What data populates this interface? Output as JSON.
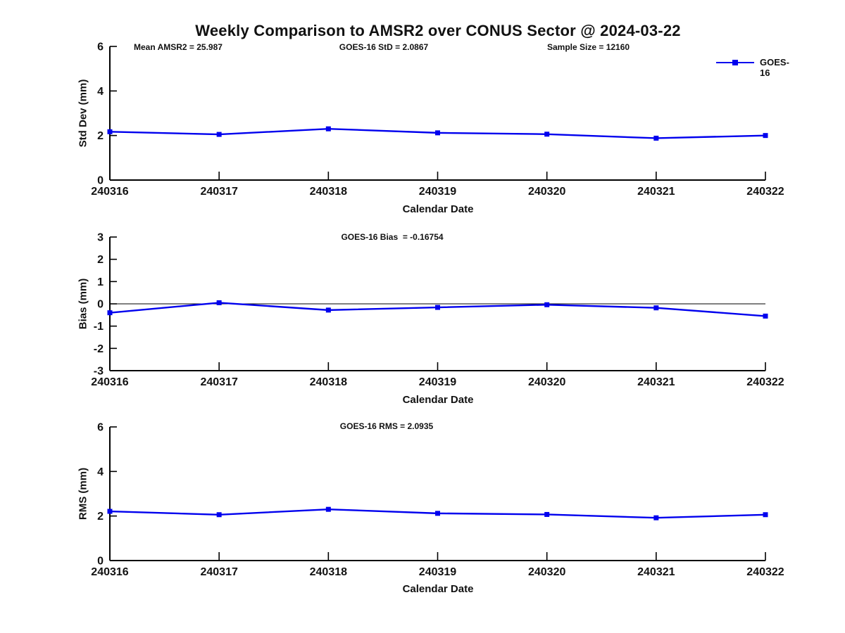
{
  "page": {
    "title": "Weekly Comparison to AMSR2 over CONUS Sector @ 2024-03-22"
  },
  "annotations": {
    "mean_amsr2": "Mean AMSR2 = 25.987",
    "goes16_std": "GOES-16 StD = 2.0867",
    "sample_size": "Sample Size = 12160",
    "goes16_bias": "GOES-16 Bias  = -0.16754",
    "goes16_rms": "GOES-16 RMS = 2.0935"
  },
  "legend": {
    "label": "GOES-16",
    "color": "#0000EE",
    "position": "top-right",
    "marker": "square"
  },
  "chart_data": [
    {
      "type": "line",
      "categories": [
        "240316",
        "240317",
        "240318",
        "240319",
        "240320",
        "240321",
        "240322"
      ],
      "series": [
        {
          "name": "GOES-16",
          "values": [
            2.17,
            2.05,
            2.3,
            2.12,
            2.06,
            1.88,
            2.0
          ]
        }
      ],
      "xlabel": "Calendar Date",
      "ylabel": "Std Dev (mm)",
      "ylim": [
        0,
        6
      ],
      "yticks": [
        0,
        2,
        4,
        6
      ],
      "grid": false,
      "zero_line": false,
      "line_color": "#0000EE",
      "marker": "square"
    },
    {
      "type": "line",
      "categories": [
        "240316",
        "240317",
        "240318",
        "240319",
        "240320",
        "240321",
        "240322"
      ],
      "series": [
        {
          "name": "GOES-16",
          "values": [
            -0.4,
            0.05,
            -0.28,
            -0.16,
            -0.04,
            -0.18,
            -0.55
          ]
        }
      ],
      "xlabel": "Calendar Date",
      "ylabel": "Bias (mm)",
      "ylim": [
        -3,
        3
      ],
      "yticks": [
        -3,
        -2,
        -1,
        0,
        1,
        2,
        3
      ],
      "grid": false,
      "zero_line": true,
      "line_color": "#0000EE",
      "marker": "square"
    },
    {
      "type": "line",
      "categories": [
        "240316",
        "240317",
        "240318",
        "240319",
        "240320",
        "240321",
        "240322"
      ],
      "series": [
        {
          "name": "GOES-16",
          "values": [
            2.21,
            2.06,
            2.3,
            2.12,
            2.07,
            1.92,
            2.06
          ]
        }
      ],
      "xlabel": "Calendar Date",
      "ylabel": "RMS (mm)",
      "ylim": [
        0,
        6
      ],
      "yticks": [
        0,
        2,
        4,
        6
      ],
      "grid": false,
      "zero_line": false,
      "line_color": "#0000EE",
      "marker": "square"
    }
  ]
}
